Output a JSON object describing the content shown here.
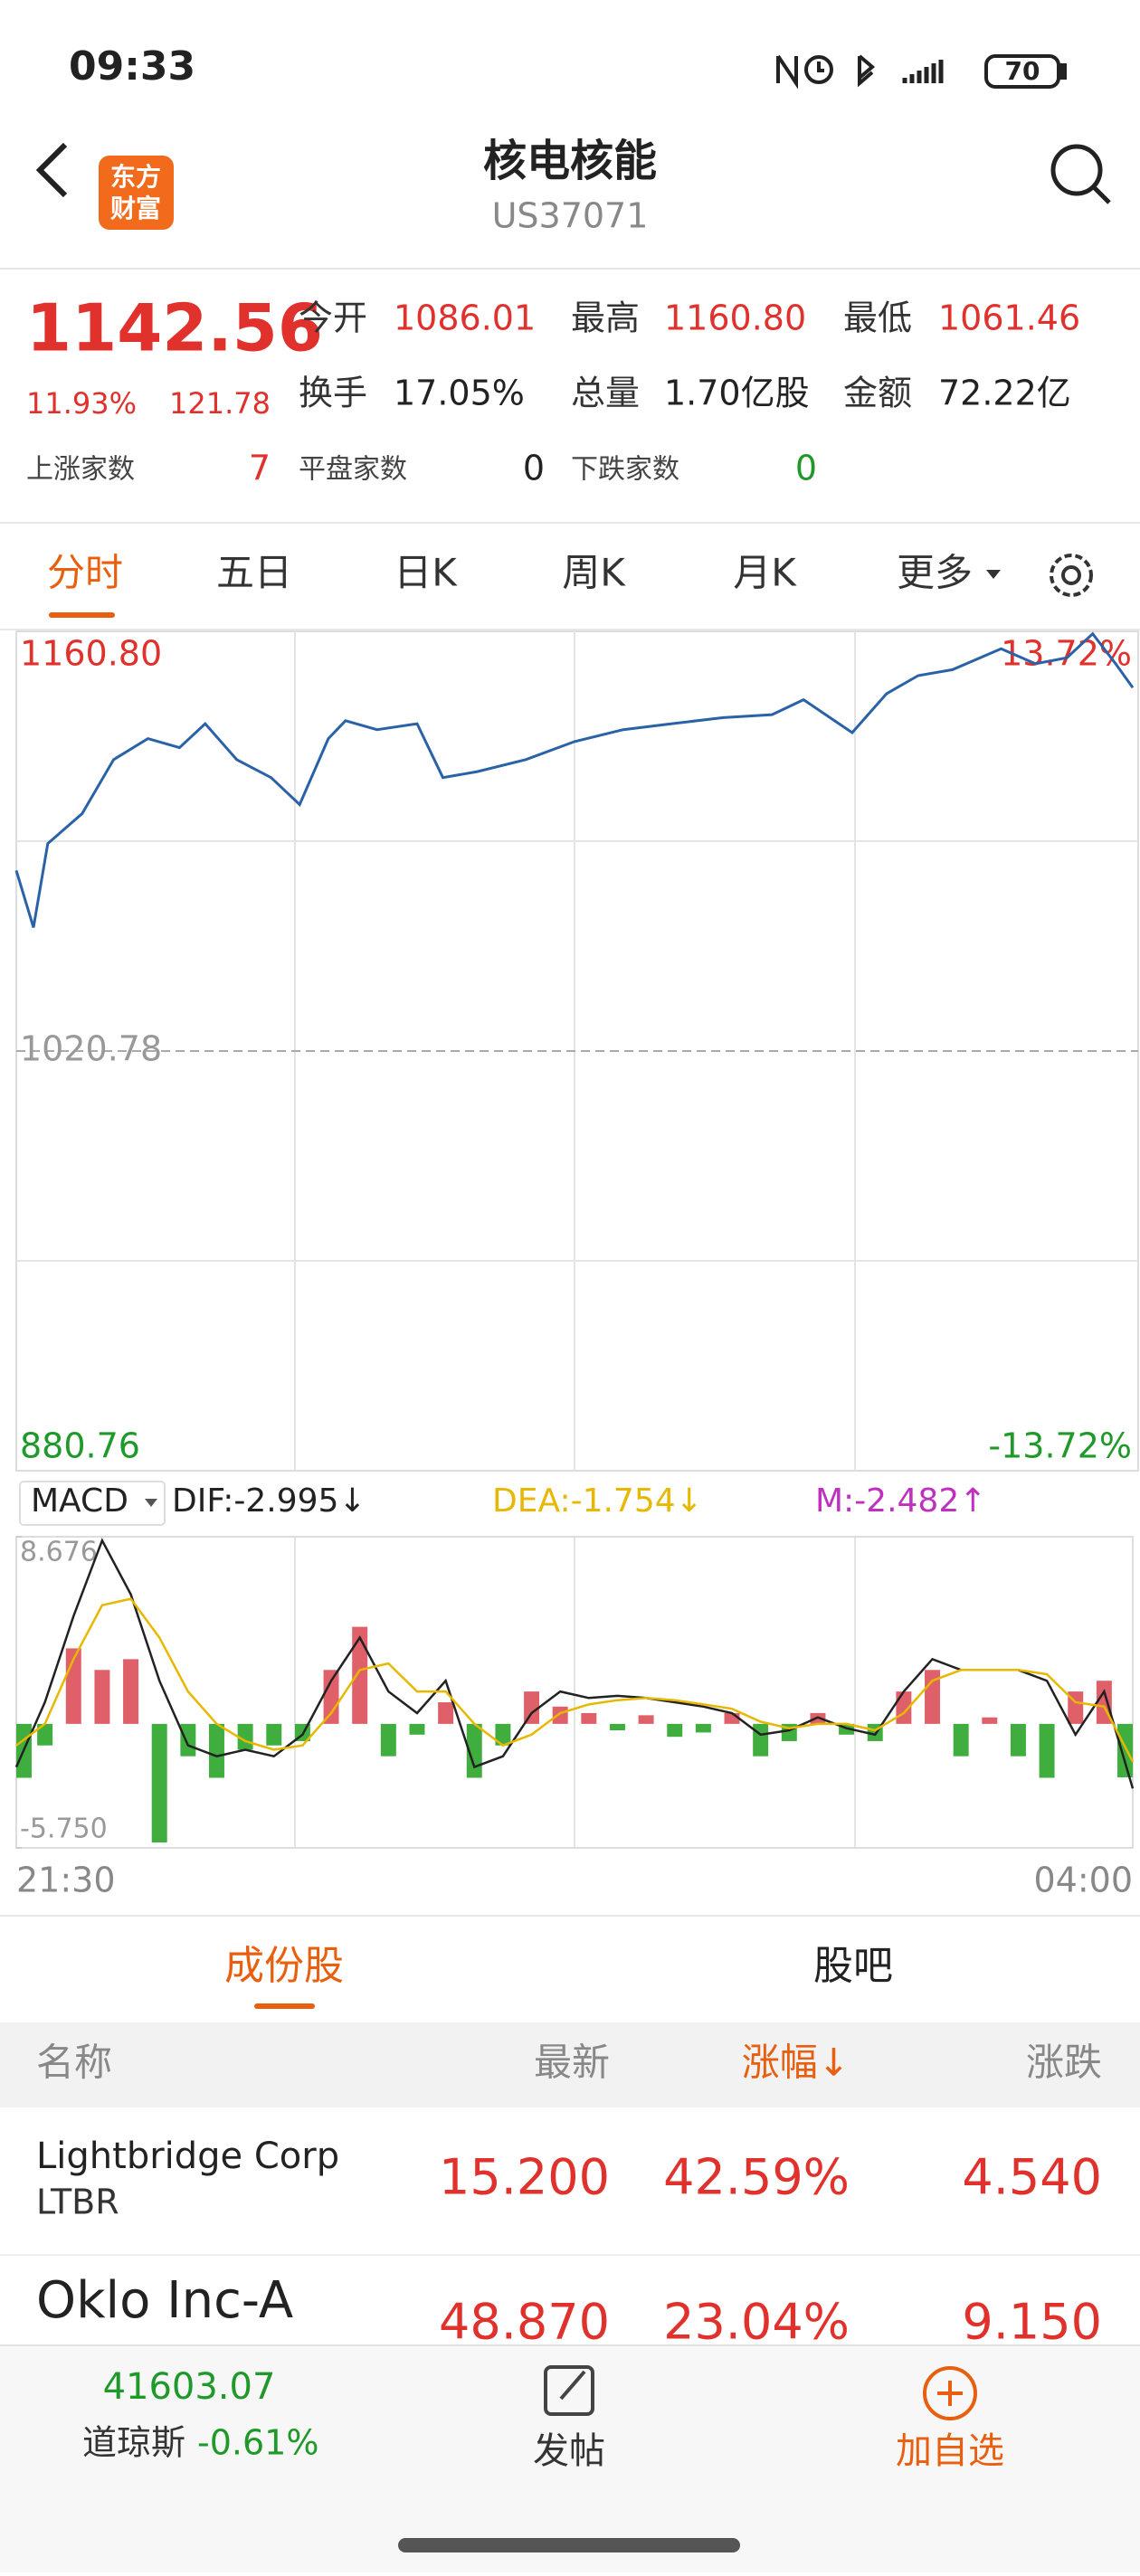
{
  "status_bar": {
    "time": "09:33",
    "battery": "70"
  },
  "header": {
    "logo": [
      "东方",
      "财富"
    ],
    "title": "核电核能",
    "code": "US37071"
  },
  "quote": {
    "price": "1142.56",
    "change_pct": "11.93%",
    "change": "121.78",
    "stats": [
      {
        "label": "今开",
        "value": "1086.01"
      },
      {
        "label": "最高",
        "value": "1160.80"
      },
      {
        "label": "最低",
        "value": "1061.46"
      },
      {
        "label": "换手",
        "value": "17.05%"
      },
      {
        "label": "总量",
        "value": "1.70亿股"
      },
      {
        "label": "金额",
        "value": "72.22亿"
      }
    ],
    "breadth": [
      {
        "label": "上涨家数",
        "value": "7"
      },
      {
        "label": "平盘家数",
        "value": "0"
      },
      {
        "label": "下跌家数",
        "value": "0"
      }
    ]
  },
  "tabs": [
    "分时",
    "五日",
    "日K",
    "周K",
    "月K",
    "更多"
  ],
  "chart_data": [
    {
      "type": "line",
      "x": [
        0,
        6,
        11,
        23,
        34,
        46,
        57,
        66,
        77,
        89,
        99,
        109,
        115,
        126,
        140,
        149,
        161,
        178,
        195,
        212,
        229,
        247,
        264,
        275,
        292,
        304,
        315,
        327,
        344,
        356,
        367,
        376,
        384,
        390
      ],
      "series": [
        {
          "color": "#2a62a8",
          "values": [
            1081,
            1062,
            1090,
            1100,
            1118,
            1125,
            1122,
            1130,
            1118,
            1112,
            1103,
            1125,
            1131,
            1128,
            1130,
            1112,
            1114,
            1118,
            1124,
            1128,
            1130,
            1132,
            1133,
            1138,
            1127,
            1140,
            1146,
            1148,
            1155,
            1150,
            1152,
            1160,
            1150,
            1142
          ]
        }
      ],
      "xlim": [
        0,
        390
      ],
      "xticks": [
        {
          "value": 0,
          "label": "21:30"
        },
        {
          "value": 390,
          "label": "04:00"
        }
      ],
      "ylim": [
        880.76,
        1160.8
      ],
      "yticks": [
        {
          "value": 880.76,
          "label": "880.76"
        },
        {
          "value": 1020.78,
          "label": "1020.78"
        },
        {
          "value": 1160.8,
          "label": "1160.80"
        }
      ],
      "y2lim": [
        -13.72,
        13.72
      ],
      "y2ticks": [
        {
          "value": -13.72,
          "label": "-13.72%"
        },
        {
          "value": 13.72,
          "label": "13.72%"
        }
      ],
      "grid": true
    },
    {
      "type": "macd",
      "indicator": "MACD",
      "legend": [
        "DIF:-2.995↓",
        "DEA:-1.754↓",
        "M:-2.482↑"
      ],
      "x": [
        0,
        10,
        20,
        30,
        40,
        50,
        60,
        70,
        80,
        90,
        100,
        110,
        120,
        130,
        140,
        150,
        160,
        170,
        180,
        190,
        200,
        210,
        220,
        230,
        240,
        250,
        260,
        270,
        280,
        290,
        300,
        310,
        320,
        330,
        340,
        350,
        360,
        370,
        380,
        390
      ],
      "up_color": "#e0606a",
      "down_color": "#3fae3f",
      "series": [
        {
          "color": "#c030c0",
          "values": [
            -2.5,
            -1,
            3.5,
            2.5,
            3,
            -5.5,
            -1.5,
            -2.5,
            -1.2,
            -1,
            -0.8,
            2.5,
            4.5,
            -1.5,
            -0.5,
            1,
            -2.5,
            -1,
            1.5,
            0.8,
            0.5,
            -0.3,
            0.4,
            -0.6,
            -0.4,
            0.5,
            -1.5,
            -0.8,
            0.5,
            -0.5,
            -0.8,
            1.5,
            2.5,
            -1.5,
            0.3,
            -1.5,
            -2.5,
            1.5,
            2,
            -2.482
          ]
        },
        {
          "color": "#222222",
          "values": [
            -2,
            1,
            5,
            8.5,
            6,
            2,
            -1,
            -1.5,
            -1.2,
            -1.5,
            -0.5,
            2,
            4,
            1.5,
            0.5,
            2,
            -2,
            -1.5,
            0.5,
            1.5,
            1.2,
            1.3,
            1.2,
            1,
            0.8,
            0.5,
            -0.5,
            -0.3,
            0.3,
            -0.2,
            -0.5,
            1.5,
            3,
            2.5,
            2.5,
            2.5,
            2,
            -0.5,
            1.5,
            -2.995
          ]
        },
        {
          "color": "#e8b800",
          "values": [
            -1,
            0,
            3,
            5.5,
            5.8,
            4,
            1.5,
            0,
            -0.8,
            -1.2,
            -1,
            0.5,
            2.5,
            2.8,
            1.5,
            1.5,
            0,
            -1,
            -0.5,
            0.5,
            0.9,
            1.1,
            1.2,
            1.1,
            0.9,
            0.7,
            0.1,
            -0.2,
            0,
            0,
            -0.3,
            0.5,
            2,
            2.5,
            2.5,
            2.5,
            2.3,
            1,
            0.8,
            -1.754
          ]
        }
      ],
      "xlim": [
        0,
        390
      ],
      "ylim": [
        -5.75,
        8.676
      ],
      "yticks": [
        {
          "value": -5.75,
          "label": "-5.750"
        },
        {
          "value": 8.676,
          "label": "8.676"
        }
      ]
    }
  ],
  "list_tabs": [
    "成份股",
    "股吧"
  ],
  "table": {
    "columns": [
      "名称",
      "最新",
      "涨幅↓",
      "涨跌"
    ],
    "rows": [
      [
        "Lightbridge Corp",
        "LTBR",
        "15.200",
        "42.59%",
        "4.540"
      ],
      [
        "Oklo Inc-A",
        "",
        "48.870",
        "23.04%",
        "9.150"
      ]
    ]
  },
  "footer": {
    "index_value": "41603.07",
    "index_name": "道琼斯",
    "index_change": "-0.61%",
    "post": "发帖",
    "add": "加自选"
  }
}
